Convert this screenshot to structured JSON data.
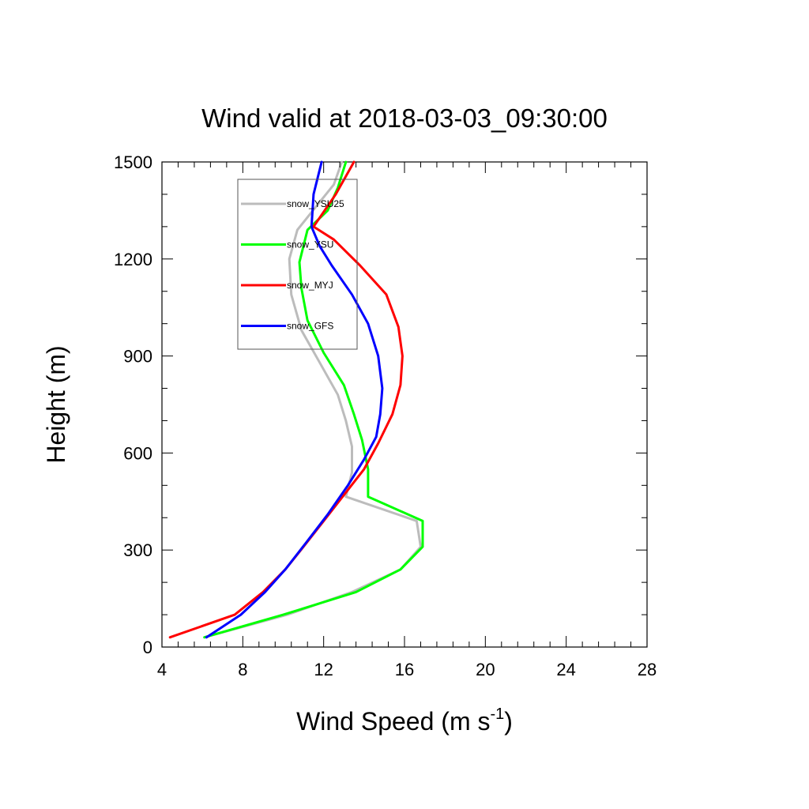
{
  "chart_data": {
    "type": "line",
    "title": "Wind valid at 2018-03-03_09:30:00",
    "xlabel": "Wind Speed (m s",
    "xlabel_superscript": "-1",
    "xlabel_suffix": ")",
    "ylabel": "Height (m)",
    "xlim": [
      4,
      28
    ],
    "ylim": [
      0,
      1500
    ],
    "xticks": [
      4,
      8,
      12,
      16,
      20,
      24,
      28
    ],
    "yticks": [
      0,
      300,
      600,
      900,
      1200,
      1500
    ],
    "legend_position": "top-left",
    "grid": false,
    "series": [
      {
        "name": "snow_YSU25",
        "color": "#bcbcbc",
        "points": [
          [
            6.1,
            30
          ],
          [
            10.2,
            100
          ],
          [
            13.4,
            170
          ],
          [
            15.8,
            240
          ],
          [
            16.8,
            310
          ],
          [
            16.6,
            390
          ],
          [
            13.1,
            465
          ],
          [
            13.4,
            540
          ],
          [
            13.4,
            620
          ],
          [
            13.1,
            700
          ],
          [
            12.7,
            780
          ],
          [
            11.8,
            880
          ],
          [
            10.9,
            980
          ],
          [
            10.4,
            1090
          ],
          [
            10.3,
            1200
          ],
          [
            10.7,
            1290
          ],
          [
            11.6,
            1360
          ],
          [
            12.5,
            1430
          ],
          [
            12.9,
            1500
          ]
        ]
      },
      {
        "name": "snow_YSU",
        "color": "#00ff00",
        "points": [
          [
            6.1,
            30
          ],
          [
            10.0,
            100
          ],
          [
            13.6,
            170
          ],
          [
            15.8,
            240
          ],
          [
            16.9,
            310
          ],
          [
            16.9,
            390
          ],
          [
            14.2,
            465
          ],
          [
            14.2,
            550
          ],
          [
            13.9,
            640
          ],
          [
            13.5,
            720
          ],
          [
            13.0,
            810
          ],
          [
            12.0,
            910
          ],
          [
            11.2,
            1010
          ],
          [
            10.9,
            1110
          ],
          [
            10.8,
            1190
          ],
          [
            11.2,
            1290
          ],
          [
            12.2,
            1350
          ],
          [
            12.7,
            1420
          ],
          [
            13.1,
            1500
          ]
        ]
      },
      {
        "name": "snow_MYJ",
        "color": "#ff0000",
        "points": [
          [
            4.4,
            30
          ],
          [
            7.6,
            100
          ],
          [
            9.0,
            170
          ],
          [
            10.1,
            240
          ],
          [
            11.0,
            310
          ],
          [
            12.0,
            390
          ],
          [
            13.0,
            470
          ],
          [
            14.0,
            550
          ],
          [
            14.7,
            630
          ],
          [
            15.4,
            720
          ],
          [
            15.8,
            810
          ],
          [
            15.9,
            900
          ],
          [
            15.7,
            990
          ],
          [
            15.1,
            1090
          ],
          [
            13.8,
            1180
          ],
          [
            12.5,
            1260
          ],
          [
            11.5,
            1300
          ],
          [
            12.6,
            1400
          ],
          [
            13.5,
            1500
          ]
        ]
      },
      {
        "name": "snow_GFS",
        "color": "#0000ff",
        "points": [
          [
            6.2,
            30
          ],
          [
            7.9,
            100
          ],
          [
            9.1,
            170
          ],
          [
            10.1,
            240
          ],
          [
            11.1,
            320
          ],
          [
            12.2,
            410
          ],
          [
            13.2,
            500
          ],
          [
            14.0,
            580
          ],
          [
            14.6,
            650
          ],
          [
            14.8,
            720
          ],
          [
            14.9,
            800
          ],
          [
            14.7,
            900
          ],
          [
            14.2,
            1000
          ],
          [
            13.4,
            1090
          ],
          [
            12.4,
            1180
          ],
          [
            11.8,
            1240
          ],
          [
            11.4,
            1300
          ],
          [
            11.5,
            1400
          ],
          [
            11.9,
            1500
          ]
        ]
      }
    ]
  }
}
